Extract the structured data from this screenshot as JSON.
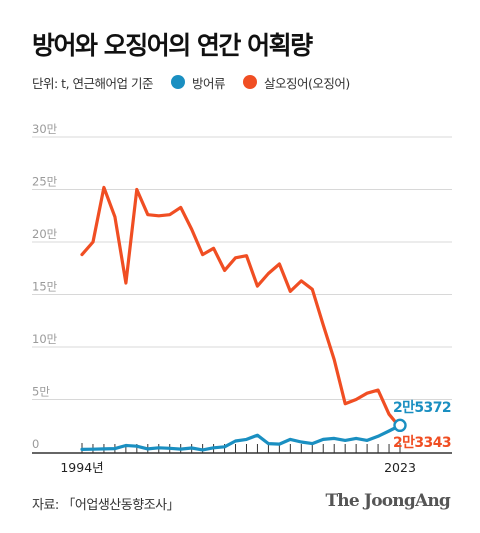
{
  "title": "방어와 오징어의 연간 어획량",
  "unit_note": "단위: t, 연근해어업 기준",
  "source": "자료: 「어업생산동향조사」",
  "brand": "The JoongAng",
  "chart_data": {
    "type": "line",
    "x_start_label": "1994년",
    "x_end_label": "2023",
    "x": [
      1994,
      1995,
      1996,
      1997,
      1998,
      1999,
      2000,
      2001,
      2002,
      2003,
      2004,
      2005,
      2006,
      2007,
      2008,
      2009,
      2010,
      2011,
      2012,
      2013,
      2014,
      2015,
      2016,
      2017,
      2018,
      2019,
      2020,
      2021,
      2022,
      2023
    ],
    "y_ticks": [
      {
        "value": 0,
        "label": "0"
      },
      {
        "value": 50000,
        "label": "5만"
      },
      {
        "value": 100000,
        "label": "10만"
      },
      {
        "value": 150000,
        "label": "15만"
      },
      {
        "value": 200000,
        "label": "20만"
      },
      {
        "value": 250000,
        "label": "25만"
      },
      {
        "value": 300000,
        "label": "30만"
      }
    ],
    "ylim": [
      0,
      300000
    ],
    "series": [
      {
        "name": "방어류",
        "color": "#1a8fc1",
        "end_label": "2만5372",
        "values": [
          2500,
          2700,
          3000,
          3200,
          6200,
          5500,
          3000,
          4000,
          3500,
          2800,
          3800,
          2000,
          4000,
          5000,
          10500,
          12000,
          16000,
          8000,
          7500,
          12000,
          9500,
          8000,
          12000,
          13000,
          11000,
          13000,
          11000,
          15000,
          20000,
          25372
        ]
      },
      {
        "name": "살오징어(오징어)",
        "color": "#f04e23",
        "end_label": "2만3343",
        "values": [
          188000,
          200000,
          252000,
          224000,
          161000,
          250000,
          226000,
          225000,
          226000,
          233000,
          212000,
          188000,
          194000,
          173000,
          185000,
          187000,
          158000,
          170000,
          179000,
          153000,
          163000,
          155000,
          121000,
          88000,
          46000,
          50000,
          56000,
          59000,
          36000,
          23343
        ]
      }
    ]
  }
}
